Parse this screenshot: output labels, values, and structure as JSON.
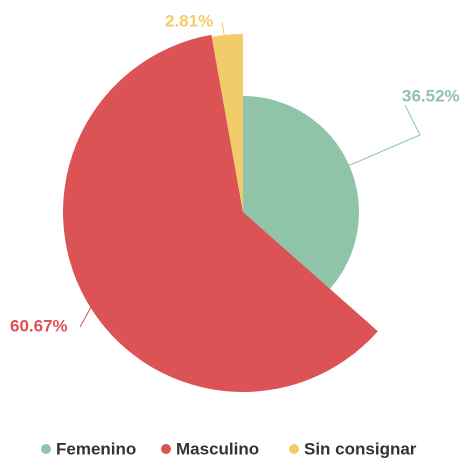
{
  "chart_data": {
    "type": "pie",
    "categories": [
      "Femenino",
      "Masculino",
      "Sin consignar"
    ],
    "values": [
      36.52,
      60.67,
      2.81
    ],
    "value_labels": [
      "36.52%",
      "60.67%",
      "2.81%"
    ],
    "colors": [
      "#8fc4a8",
      "#dc5356",
      "#f2cc6b"
    ],
    "legend": "bottom"
  }
}
